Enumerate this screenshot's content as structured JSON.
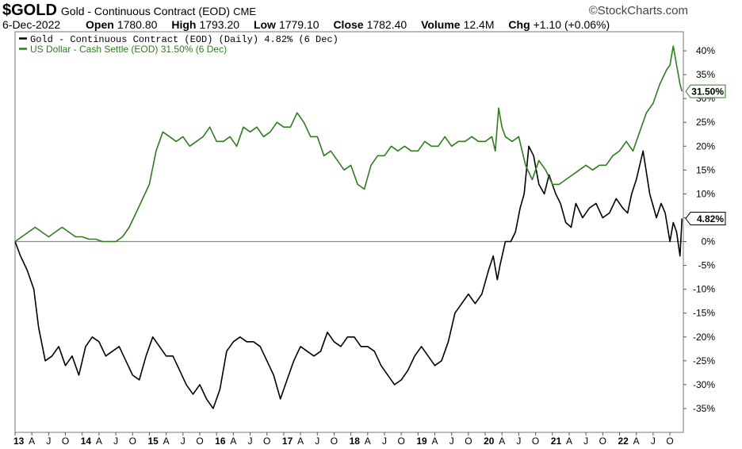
{
  "header": {
    "symbol": "$GOLD",
    "description": "Gold - Continuous Contract (EOD)",
    "exchange": "CME",
    "brand": "©StockCharts.com",
    "date": "6-Dec-2022",
    "open_label": "Open",
    "open": "1780.80",
    "high_label": "High",
    "high": "1793.20",
    "low_label": "Low",
    "low": "1779.10",
    "close_label": "Close",
    "close": "1782.40",
    "volume_label": "Volume",
    "volume": "12.4M",
    "chg_label": "Chg",
    "chg": "+1.10 (+0.06%)"
  },
  "colors": {
    "gold": "#000000",
    "usd": "#2e7d1f",
    "zero_line": "#8a8a8a",
    "axis": "#555555"
  },
  "chart_data": {
    "type": "line",
    "xlabel": "",
    "ylabel": "",
    "ylim": [
      -40,
      44
    ],
    "y_ticks": [
      40,
      35,
      30,
      25,
      20,
      15,
      10,
      5,
      0,
      -5,
      -10,
      -15,
      -20,
      -25,
      -30,
      -35
    ],
    "y_tick_labels": [
      "40%",
      "35%",
      "30%",
      "25%",
      "20%",
      "15%",
      "10%",
      "5%",
      "0%",
      "-5%",
      "-10%",
      "-15%",
      "-20%",
      "-25%",
      "-30%",
      "-35%"
    ],
    "xlim": [
      2013.0,
      2022.95
    ],
    "x_ticks": [
      {
        "t": 2013.0,
        "label": "13",
        "bold": true
      },
      {
        "t": 2013.25,
        "label": "A"
      },
      {
        "t": 2013.5,
        "label": "J"
      },
      {
        "t": 2013.75,
        "label": "O"
      },
      {
        "t": 2014.0,
        "label": "14",
        "bold": true
      },
      {
        "t": 2014.25,
        "label": "A"
      },
      {
        "t": 2014.5,
        "label": "J"
      },
      {
        "t": 2014.75,
        "label": "O"
      },
      {
        "t": 2015.0,
        "label": "15",
        "bold": true
      },
      {
        "t": 2015.25,
        "label": "A"
      },
      {
        "t": 2015.5,
        "label": "J"
      },
      {
        "t": 2015.75,
        "label": "O"
      },
      {
        "t": 2016.0,
        "label": "16",
        "bold": true
      },
      {
        "t": 2016.25,
        "label": "A"
      },
      {
        "t": 2016.5,
        "label": "J"
      },
      {
        "t": 2016.75,
        "label": "O"
      },
      {
        "t": 2017.0,
        "label": "17",
        "bold": true
      },
      {
        "t": 2017.25,
        "label": "A"
      },
      {
        "t": 2017.5,
        "label": "J"
      },
      {
        "t": 2017.75,
        "label": "O"
      },
      {
        "t": 2018.0,
        "label": "18",
        "bold": true
      },
      {
        "t": 2018.25,
        "label": "A"
      },
      {
        "t": 2018.5,
        "label": "J"
      },
      {
        "t": 2018.75,
        "label": "O"
      },
      {
        "t": 2019.0,
        "label": "19",
        "bold": true
      },
      {
        "t": 2019.25,
        "label": "A"
      },
      {
        "t": 2019.5,
        "label": "J"
      },
      {
        "t": 2019.75,
        "label": "O"
      },
      {
        "t": 2020.0,
        "label": "20",
        "bold": true
      },
      {
        "t": 2020.25,
        "label": "A"
      },
      {
        "t": 2020.5,
        "label": "J"
      },
      {
        "t": 2020.75,
        "label": "O"
      },
      {
        "t": 2021.0,
        "label": "21",
        "bold": true
      },
      {
        "t": 2021.25,
        "label": "A"
      },
      {
        "t": 2021.5,
        "label": "J"
      },
      {
        "t": 2021.75,
        "label": "O"
      },
      {
        "t": 2022.0,
        "label": "22",
        "bold": true
      },
      {
        "t": 2022.25,
        "label": "A"
      },
      {
        "t": 2022.5,
        "label": "J"
      },
      {
        "t": 2022.75,
        "label": "O"
      }
    ],
    "grid": false,
    "legend_position": "top-left",
    "series": [
      {
        "name": "Gold - Continuous Contract (EOD) (Daily) 4.82% (6 Dec)",
        "last_label": "4.82%",
        "color": "#000000",
        "x": [
          2013.0,
          2013.08,
          2013.18,
          2013.28,
          2013.35,
          2013.45,
          2013.55,
          2013.65,
          2013.75,
          2013.85,
          2013.95,
          2014.05,
          2014.15,
          2014.25,
          2014.35,
          2014.45,
          2014.55,
          2014.65,
          2014.75,
          2014.85,
          2014.95,
          2015.05,
          2015.15,
          2015.25,
          2015.35,
          2015.45,
          2015.55,
          2015.65,
          2015.75,
          2015.85,
          2015.95,
          2016.05,
          2016.15,
          2016.25,
          2016.35,
          2016.45,
          2016.55,
          2016.65,
          2016.75,
          2016.85,
          2016.95,
          2017.05,
          2017.15,
          2017.25,
          2017.35,
          2017.45,
          2017.55,
          2017.65,
          2017.75,
          2017.85,
          2017.95,
          2018.05,
          2018.15,
          2018.25,
          2018.35,
          2018.45,
          2018.55,
          2018.65,
          2018.75,
          2018.85,
          2018.95,
          2019.05,
          2019.15,
          2019.25,
          2019.35,
          2019.45,
          2019.55,
          2019.65,
          2019.75,
          2019.85,
          2019.95,
          2020.05,
          2020.12,
          2020.18,
          2020.22,
          2020.3,
          2020.38,
          2020.45,
          2020.52,
          2020.58,
          2020.65,
          2020.72,
          2020.8,
          2020.88,
          2020.95,
          2021.05,
          2021.12,
          2021.2,
          2021.28,
          2021.35,
          2021.45,
          2021.55,
          2021.65,
          2021.75,
          2021.85,
          2021.95,
          2022.05,
          2022.12,
          2022.18,
          2022.25,
          2022.35,
          2022.45,
          2022.55,
          2022.62,
          2022.68,
          2022.75,
          2022.8,
          2022.85,
          2022.9,
          2022.93
        ],
        "y": [
          0,
          -3,
          -6,
          -10,
          -18,
          -25,
          -24,
          -22,
          -26,
          -24,
          -28,
          -22,
          -20,
          -21,
          -24,
          -23,
          -22,
          -25,
          -28,
          -29,
          -24,
          -20,
          -22,
          -24,
          -24,
          -27,
          -30,
          -32,
          -30,
          -33,
          -35,
          -31,
          -23,
          -21,
          -20,
          -21,
          -21,
          -22,
          -25,
          -28,
          -33,
          -29,
          -25,
          -22,
          -23,
          -24,
          -23,
          -19,
          -21,
          -22,
          -20,
          -20,
          -22,
          -22,
          -23,
          -26,
          -28,
          -30,
          -29,
          -27,
          -24,
          -22,
          -24,
          -26,
          -25,
          -21,
          -15,
          -13,
          -11,
          -13,
          -11,
          -6,
          -3,
          -8,
          -5,
          0,
          0,
          2,
          7,
          10,
          20,
          18,
          12,
          10,
          14,
          10,
          8,
          4,
          3,
          8,
          5,
          7,
          8,
          5,
          6,
          9,
          7,
          6,
          10,
          13,
          19,
          10,
          5,
          8,
          6,
          0,
          4,
          2,
          -3,
          4.82
        ]
      },
      {
        "name": "US Dollar - Cash Settle (EOD) 31.50% (6 Dec)",
        "last_label": "31.50%",
        "color": "#2e7d1f",
        "x": [
          2013.0,
          2013.1,
          2013.2,
          2013.3,
          2013.4,
          2013.5,
          2013.6,
          2013.7,
          2013.8,
          2013.9,
          2014.0,
          2014.1,
          2014.2,
          2014.3,
          2014.4,
          2014.5,
          2014.6,
          2014.7,
          2014.8,
          2014.9,
          2015.0,
          2015.1,
          2015.2,
          2015.3,
          2015.4,
          2015.5,
          2015.6,
          2015.7,
          2015.8,
          2015.9,
          2016.0,
          2016.1,
          2016.2,
          2016.3,
          2016.4,
          2016.5,
          2016.6,
          2016.7,
          2016.8,
          2016.9,
          2017.0,
          2017.1,
          2017.2,
          2017.3,
          2017.4,
          2017.5,
          2017.6,
          2017.7,
          2017.8,
          2017.9,
          2018.0,
          2018.1,
          2018.2,
          2018.3,
          2018.4,
          2018.5,
          2018.6,
          2018.7,
          2018.8,
          2018.9,
          2019.0,
          2019.1,
          2019.2,
          2019.3,
          2019.4,
          2019.5,
          2019.6,
          2019.7,
          2019.8,
          2019.9,
          2020.0,
          2020.1,
          2020.15,
          2020.2,
          2020.25,
          2020.3,
          2020.4,
          2020.5,
          2020.6,
          2020.7,
          2020.8,
          2020.9,
          2021.0,
          2021.1,
          2021.2,
          2021.3,
          2021.4,
          2021.5,
          2021.6,
          2021.7,
          2021.8,
          2021.9,
          2022.0,
          2022.1,
          2022.2,
          2022.3,
          2022.4,
          2022.5,
          2022.6,
          2022.7,
          2022.75,
          2022.8,
          2022.85,
          2022.9,
          2022.93
        ],
        "y": [
          0,
          1,
          2,
          3,
          2,
          1,
          2,
          3,
          2,
          1,
          1,
          0.5,
          0.5,
          0,
          0,
          0,
          1,
          3,
          6,
          9,
          12,
          19,
          23,
          22,
          21,
          22,
          20,
          21,
          22,
          24,
          21,
          21,
          22,
          20,
          24,
          23,
          24,
          22,
          23,
          25,
          24,
          24,
          27,
          25,
          22,
          22,
          18,
          19,
          17,
          15,
          16,
          12,
          11,
          16,
          18,
          18,
          20,
          19,
          20,
          19,
          19,
          21,
          20,
          20,
          22,
          20,
          21,
          21,
          22,
          21,
          21,
          22,
          19,
          28,
          24,
          22,
          21,
          22,
          16,
          13,
          17,
          15,
          12,
          12,
          13,
          14,
          15,
          16,
          15,
          16,
          16,
          18,
          19,
          21,
          19,
          23,
          27,
          29,
          33,
          36,
          37,
          41,
          37,
          33,
          31.5
        ]
      }
    ]
  }
}
